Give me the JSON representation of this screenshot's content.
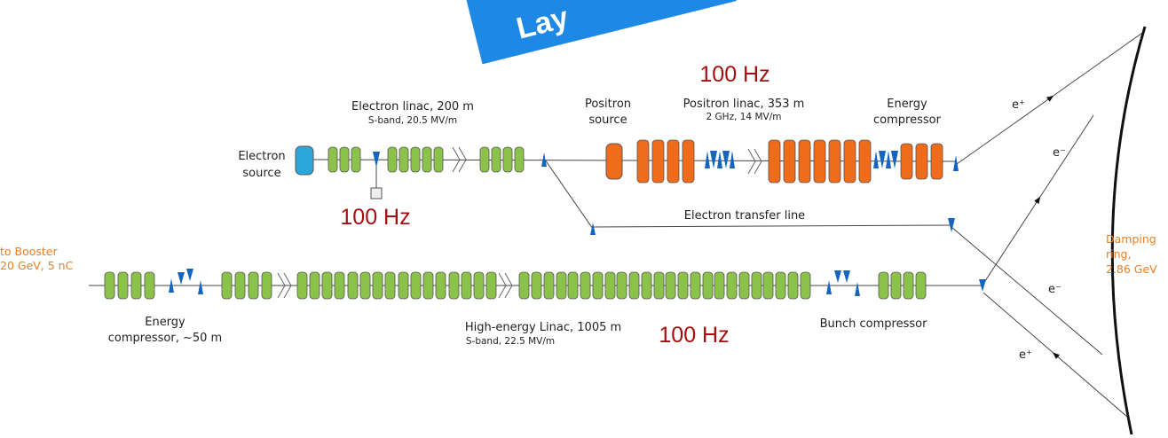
{
  "banner": "Lay",
  "electron_linac": {
    "title": "Electron linac, 200 m",
    "spec": "S-band, 20.5 MV/m"
  },
  "electron_source": [
    "Electron",
    "source"
  ],
  "positron_source": [
    "Positron",
    "source"
  ],
  "positron_linac": {
    "title": "Positron linac, 353 m",
    "spec": "2 GHz, 14 MV/m"
  },
  "energy_compressor_top": [
    "Energy",
    "compressor"
  ],
  "rates": [
    "100 Hz",
    "100 Hz",
    "100 Hz"
  ],
  "rate_bottom": "100 Hz",
  "electron_transfer_line": "Electron transfer line",
  "booster": [
    "to Booster",
    "20 GeV, 5 nC"
  ],
  "damping_ring": [
    "Damping",
    "ring,",
    "2.86 GeV"
  ],
  "energy_compressor_bottom": [
    "Energy",
    "compressor, ~50 m"
  ],
  "high_energy_linac": {
    "title": "High-energy Linac, 1005 m",
    "spec": "S-band, 22.5 MV/m"
  },
  "bunch_compressor": "Bunch compressor",
  "beam_labels": [
    "e⁺",
    "e⁻",
    "e⁻",
    "e⁺"
  ]
}
